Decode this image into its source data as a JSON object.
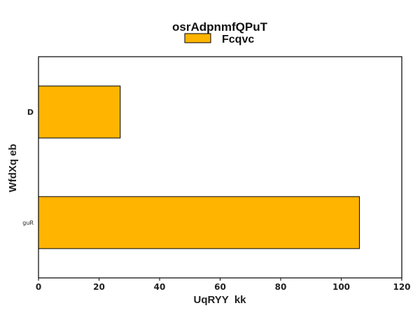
{
  "chart_data": {
    "type": "bar",
    "orientation": "horizontal",
    "title": "osrAdpnmfQPuT",
    "xlabel": "UqRYY  kk",
    "ylabel": "WfdXq eb",
    "categories": [
      "D",
      "guR"
    ],
    "series": [
      {
        "name": "Fcqvc",
        "values": [
          27,
          106
        ],
        "color": "#ffb400"
      }
    ],
    "xlim": [
      0,
      120
    ],
    "xticks": [
      0,
      20,
      40,
      60,
      80,
      100,
      120
    ],
    "grid": false,
    "legend_position": "top-center"
  }
}
